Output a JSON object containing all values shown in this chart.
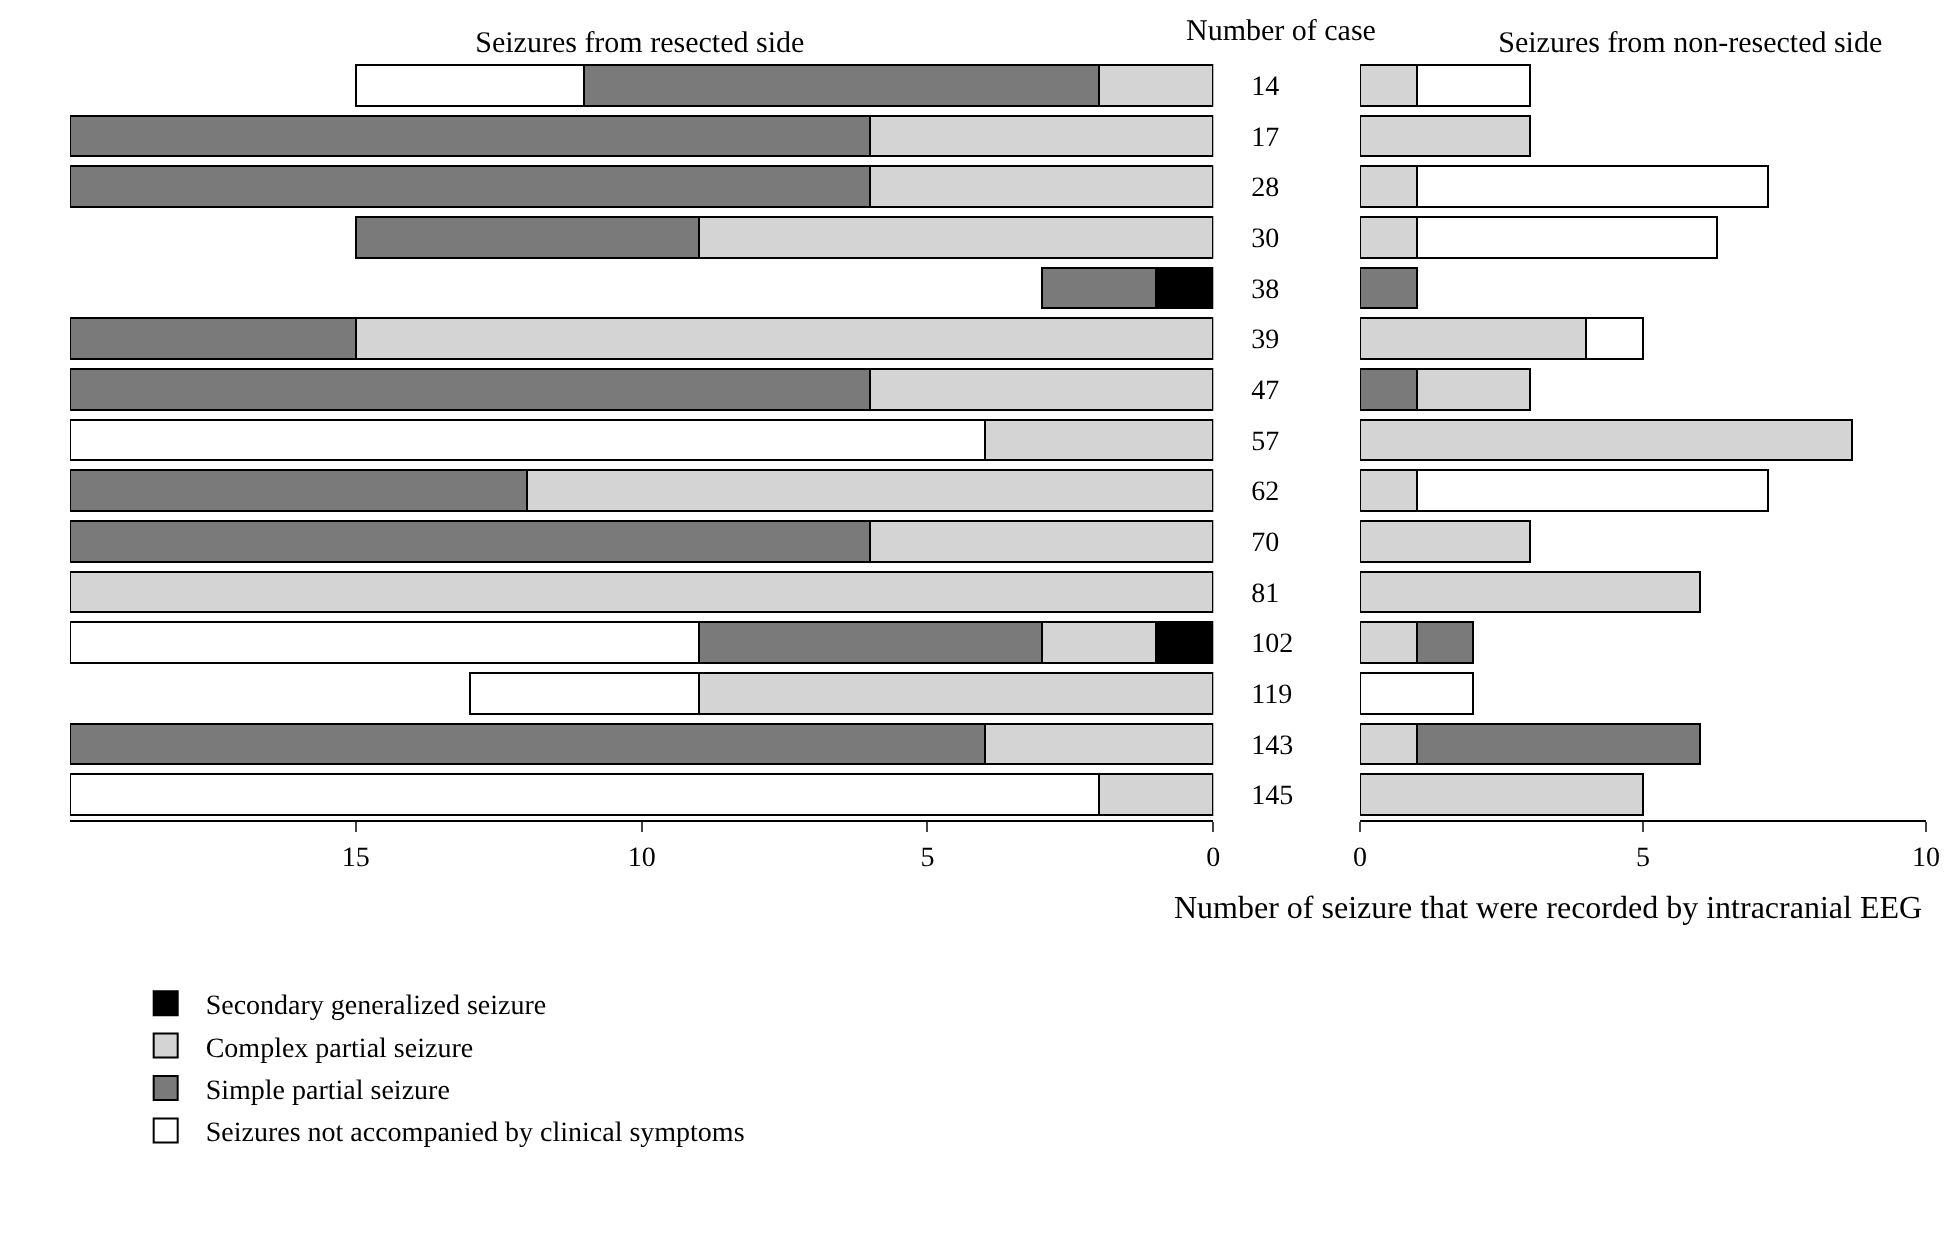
{
  "chart_data": [
    {
      "type": "bar",
      "title": "Seizures from resected side",
      "ylabel": "Number of case",
      "orientation": "horizontal",
      "stacked": true,
      "legend": "bottom",
      "grid": false,
      "categories": [
        "14",
        "17",
        "28",
        "30",
        "38",
        "39",
        "47",
        "57",
        "62",
        "70",
        "81",
        "102",
        "119",
        "143",
        "145"
      ],
      "xlim": [
        20,
        0
      ],
      "xticks": [
        15,
        10,
        5,
        0
      ],
      "series": [
        {
          "name": "Secondary generalized seizure",
          "color": "#000000",
          "values": [
            null,
            null,
            null,
            null,
            1,
            null,
            null,
            null,
            null,
            null,
            null,
            1,
            null,
            null,
            null
          ]
        },
        {
          "name": "Complex partial seizure",
          "color": "#d4d4d4",
          "values": [
            2,
            6,
            6,
            9,
            null,
            15,
            6,
            4,
            12,
            6,
            20,
            2,
            9,
            4,
            2
          ]
        },
        {
          "name": "Simple partial seizure",
          "color": "#7a7a7a",
          "values": [
            9,
            14,
            14,
            6,
            2,
            5,
            14,
            null,
            8,
            14,
            null,
            6,
            null,
            16,
            null
          ]
        },
        {
          "name": "Seizures not accompanied by clinical symptoms",
          "color": "#ffffff",
          "values": [
            4,
            null,
            null,
            null,
            null,
            null,
            null,
            16,
            null,
            null,
            null,
            11,
            4,
            null,
            18
          ]
        }
      ]
    },
    {
      "type": "bar",
      "title": "Seizures from non-resected side",
      "xlabel": "Number of seizure that were recorded by intracranial EEG",
      "orientation": "horizontal",
      "stacked": true,
      "legend": false,
      "grid": false,
      "tick_labels": "x",
      "categories": [
        "14",
        "17",
        "28",
        "30",
        "38",
        "39",
        "47",
        "57",
        "62",
        "70",
        "81",
        "102",
        "119",
        "143",
        "145"
      ],
      "xlim": [
        0,
        10
      ],
      "xticks": [
        0,
        5,
        10
      ],
      "series": [
        {
          "color": "#7a7a7a",
          "values": [
            null,
            null,
            null,
            null,
            1,
            null,
            1,
            null,
            null,
            null,
            null,
            null,
            null,
            null,
            null
          ]
        },
        {
          "color": "#d4d4d4",
          "values": [
            1,
            3,
            1,
            1,
            null,
            4,
            2,
            8.7,
            1,
            3,
            6,
            1,
            null,
            1,
            5
          ]
        },
        {
          "color": "#7a7a7a",
          "values": [
            null,
            null,
            null,
            null,
            null,
            null,
            null,
            null,
            null,
            null,
            null,
            1,
            null,
            5,
            null
          ]
        },
        {
          "color": "#ffffff",
          "values": [
            2,
            null,
            6.2,
            5.3,
            null,
            1,
            null,
            null,
            6.2,
            null,
            null,
            null,
            2,
            null,
            null
          ]
        }
      ]
    }
  ]
}
